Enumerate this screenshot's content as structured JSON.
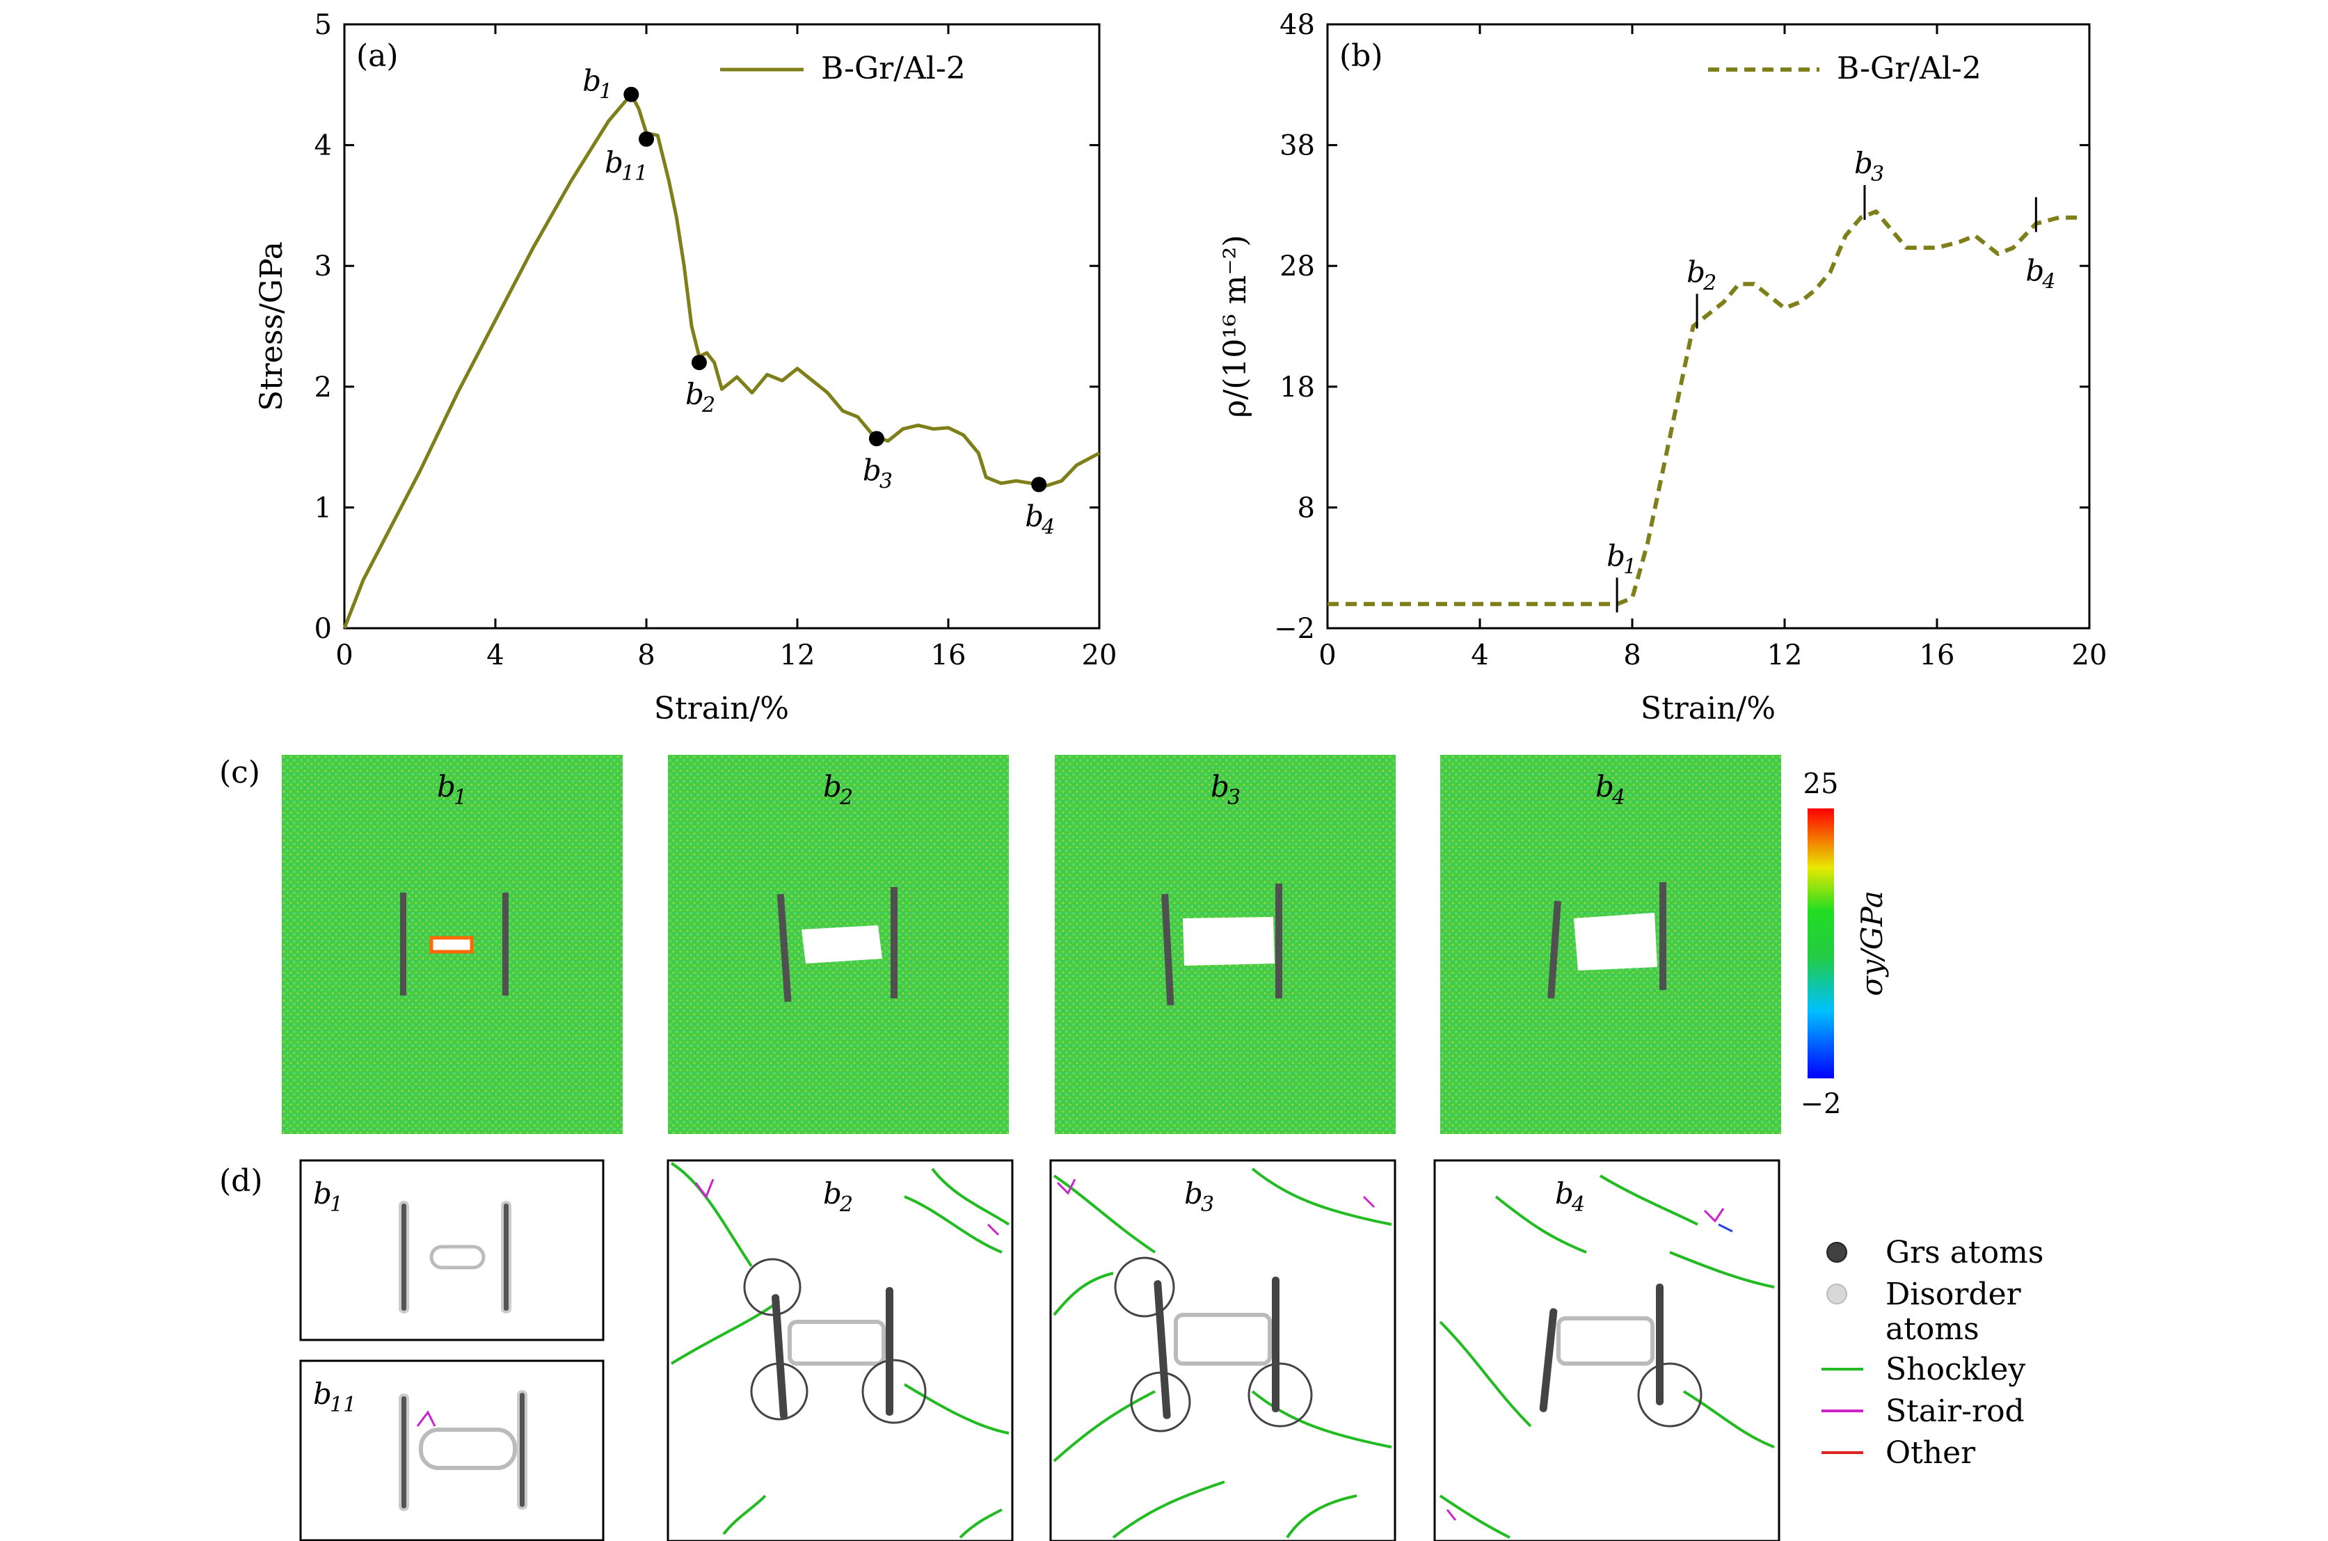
{
  "chart_data": [
    {
      "type": "line",
      "panel_label": "(a)",
      "xlabel": "Strain/%",
      "ylabel": "Stress/GPa",
      "xlim": [
        0,
        20
      ],
      "ylim": [
        0,
        5
      ],
      "xticks": [
        "0",
        "4",
        "8",
        "12",
        "16",
        "20"
      ],
      "yticks": [
        "0",
        "1",
        "2",
        "3",
        "4",
        "5"
      ],
      "legend": {
        "placement": "top-right",
        "entries": [
          "B-Gr/Al-2"
        ]
      },
      "series": [
        {
          "name": "B-Gr/Al-2",
          "color": "#7f7f1a",
          "style": "solid",
          "x": [
            0,
            0.5,
            1,
            2,
            3,
            4,
            5,
            6,
            7,
            7.6,
            7.8,
            8.0,
            8.3,
            8.6,
            8.8,
            9.0,
            9.2,
            9.4,
            9.6,
            9.8,
            10.0,
            10.4,
            10.8,
            11.2,
            11.6,
            12.0,
            12.4,
            12.8,
            13.2,
            13.6,
            14.0,
            14.4,
            14.8,
            15.2,
            15.6,
            16.0,
            16.4,
            16.8,
            17.0,
            17.4,
            17.8,
            18.2,
            18.6,
            19.0,
            19.4,
            20.0
          ],
          "y": [
            0,
            0.4,
            0.7,
            1.3,
            1.95,
            2.55,
            3.15,
            3.7,
            4.2,
            4.42,
            4.3,
            4.1,
            4.08,
            3.7,
            3.4,
            3.0,
            2.5,
            2.25,
            2.28,
            2.2,
            1.98,
            2.08,
            1.95,
            2.1,
            2.05,
            2.15,
            2.05,
            1.95,
            1.8,
            1.75,
            1.6,
            1.55,
            1.65,
            1.68,
            1.65,
            1.66,
            1.6,
            1.45,
            1.25,
            1.2,
            1.22,
            1.2,
            1.18,
            1.22,
            1.35,
            1.45
          ]
        }
      ],
      "annotations": [
        {
          "base": "b",
          "sub": "1",
          "x": 7.6,
          "y": 4.42
        },
        {
          "base": "b",
          "sub": "11",
          "x": 8.0,
          "y": 4.05
        },
        {
          "base": "b",
          "sub": "2",
          "x": 9.4,
          "y": 2.2
        },
        {
          "base": "b",
          "sub": "3",
          "x": 14.1,
          "y": 1.57
        },
        {
          "base": "b",
          "sub": "4",
          "x": 18.4,
          "y": 1.19
        }
      ]
    },
    {
      "type": "line",
      "panel_label": "(b)",
      "xlabel": "Strain/%",
      "ylabel": "ρ/(10¹⁶ m⁻²)",
      "xlim": [
        0,
        20
      ],
      "ylim": [
        -2,
        48
      ],
      "xticks": [
        "0",
        "4",
        "8",
        "12",
        "16",
        "20"
      ],
      "yticks": [
        "−2",
        "8",
        "18",
        "28",
        "38",
        "48"
      ],
      "legend": {
        "placement": "top-right",
        "entries": [
          "B-Gr/Al-2"
        ]
      },
      "series": [
        {
          "name": "B-Gr/Al-2",
          "color": "#7f7f1a",
          "style": "dashed",
          "x": [
            0,
            7.6,
            8.0,
            8.4,
            8.8,
            9.2,
            9.6,
            9.8,
            10.4,
            10.8,
            11.2,
            11.6,
            12.0,
            12.4,
            12.8,
            13.2,
            13.6,
            14.0,
            14.4,
            14.8,
            15.2,
            15.6,
            16.0,
            16.6,
            17.0,
            17.6,
            18.0,
            18.6,
            19.2,
            19.8
          ],
          "y": [
            0,
            0,
            0.5,
            5,
            11,
            17,
            23,
            23.5,
            25,
            26.5,
            26.5,
            25.5,
            24.5,
            25,
            26,
            27.5,
            30.5,
            32,
            32.5,
            31,
            29.5,
            29.5,
            29.5,
            30,
            30.5,
            29,
            29.5,
            31.5,
            32,
            32
          ]
        }
      ],
      "annotations": [
        {
          "base": "b",
          "sub": "1",
          "x": 7.6,
          "y": 0
        },
        {
          "base": "b",
          "sub": "2",
          "x": 9.7,
          "y": 23.5
        },
        {
          "base": "b",
          "sub": "3",
          "x": 14.1,
          "y": 32.5
        },
        {
          "base": "b",
          "sub": "4",
          "x": 18.6,
          "y": 31.5
        }
      ]
    }
  ],
  "panel_c": {
    "label": "(c)",
    "frames": [
      {
        "base": "b",
        "sub": "1"
      },
      {
        "base": "b",
        "sub": "2"
      },
      {
        "base": "b",
        "sub": "3"
      },
      {
        "base": "b",
        "sub": "4"
      }
    ],
    "colorbar": {
      "max": "25",
      "min": "−2",
      "label": "σy/GPa"
    }
  },
  "panel_d": {
    "label": "(d)",
    "frames": [
      {
        "base": "b",
        "sub": "1"
      },
      {
        "base": "b",
        "sub": "11"
      },
      {
        "base": "b",
        "sub": "2"
      },
      {
        "base": "b",
        "sub": "3"
      },
      {
        "base": "b",
        "sub": "4"
      }
    ],
    "legend": [
      "Grs atoms",
      "Disorder",
      "atoms",
      "Shockley",
      "Stair-rod",
      "Other"
    ],
    "legend_colors": {
      "grs": "#404040",
      "disorder": "#d8d8d8",
      "shockley": "#22bb22",
      "stair_rod": "#cc22cc",
      "other": "#dd2222"
    }
  }
}
